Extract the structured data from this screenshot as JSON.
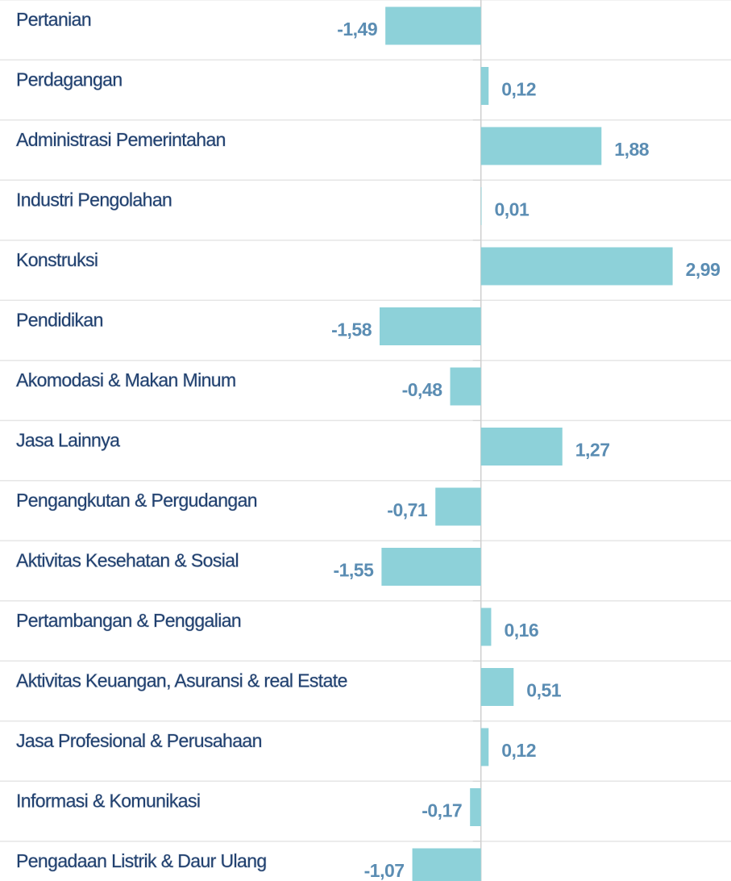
{
  "chart_data": {
    "type": "barh",
    "categories": [
      "Pertanian",
      "Perdagangan",
      "Administrasi Pemerintahan",
      "Industri Pengolahan",
      "Konstruksi",
      "Pendidikan",
      "Akomodasi & Makan Minum",
      "Jasa Lainnya",
      "Pengangkutan & Pergudangan",
      "Aktivitas Kesehatan & Sosial",
      "Pertambangan & Penggalian",
      "Aktivitas Keuangan, Asuransi & real Estate",
      "Jasa Profesional & Perusahaan",
      "Informasi & Komunikasi",
      "Pengadaan Listrik & Daur Ulang"
    ],
    "values": [
      -1.49,
      0.12,
      1.88,
      0.01,
      2.99,
      -1.58,
      -0.48,
      1.27,
      -0.71,
      -1.55,
      0.16,
      0.51,
      0.12,
      -0.17,
      -1.07
    ],
    "value_labels": [
      "-1,49",
      "0,12",
      "1,88",
      "0,01",
      "2,99",
      "-1,58",
      "-0,48",
      "1,27",
      "-0,71",
      "-1,55",
      "0,16",
      "0,51",
      "0,12",
      "-0,17",
      "-1,07"
    ],
    "color": "#8dd1d9",
    "xlim": [
      -7.5,
      3.9
    ]
  }
}
